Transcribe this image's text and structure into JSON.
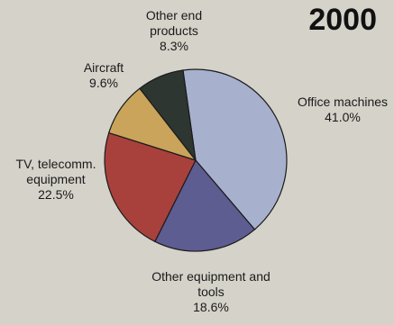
{
  "chart_data": {
    "type": "pie",
    "title": "2000",
    "slices": [
      {
        "label": [
          "Office machines"
        ],
        "value": 41.0,
        "value_label": "41.0%",
        "color": "#a7b1ce"
      },
      {
        "label": [
          "Other equipment and",
          "tools"
        ],
        "value": 18.6,
        "value_label": "18.6%",
        "color": "#5d5d92"
      },
      {
        "label": [
          "TV, telecomm.",
          "equipment"
        ],
        "value": 22.5,
        "value_label": "22.5%",
        "color": "#a8413c"
      },
      {
        "label": [
          "Aircraft"
        ],
        "value": 9.6,
        "value_label": "9.6%",
        "color": "#c9a45a"
      },
      {
        "label": [
          "Other end",
          "products"
        ],
        "value": 8.3,
        "value_label": "8.3%",
        "color": "#2e3631"
      }
    ]
  }
}
